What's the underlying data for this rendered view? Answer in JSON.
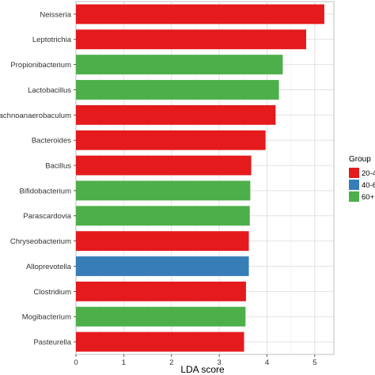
{
  "chart_data": {
    "type": "bar",
    "orientation": "horizontal",
    "categories": [
      "Neisseria",
      "Leptotrichia",
      "Propionibacterium",
      "Lactobacillus",
      "Lachnoanaerobaculum",
      "Bacteroides",
      "Bacillus",
      "Bifidobacterium",
      "Parascardovia",
      "Chryseobacterium",
      "Alloprevotella",
      "Clostridium",
      "Mogibacterium",
      "Pasteurella"
    ],
    "values": [
      5.2,
      4.82,
      4.33,
      4.25,
      4.18,
      3.97,
      3.67,
      3.65,
      3.64,
      3.62,
      3.62,
      3.56,
      3.55,
      3.52
    ],
    "groups": [
      "20-4",
      "20-4",
      "60+",
      "60+",
      "20-4",
      "20-4",
      "20-4",
      "60+",
      "60+",
      "20-4",
      "40-6",
      "20-4",
      "60+",
      "20-4"
    ],
    "xlabel": "LDA score",
    "xlim": [
      0,
      5.4
    ],
    "xticks": [
      0,
      1,
      2,
      3,
      4,
      5
    ],
    "grid": true,
    "legend": {
      "title": "Group",
      "placement": "right",
      "entries": [
        {
          "label": "20-4",
          "color": "#e41a1c"
        },
        {
          "label": "40-6",
          "color": "#377eb8"
        },
        {
          "label": "60+",
          "color": "#4daf4a"
        }
      ]
    }
  }
}
